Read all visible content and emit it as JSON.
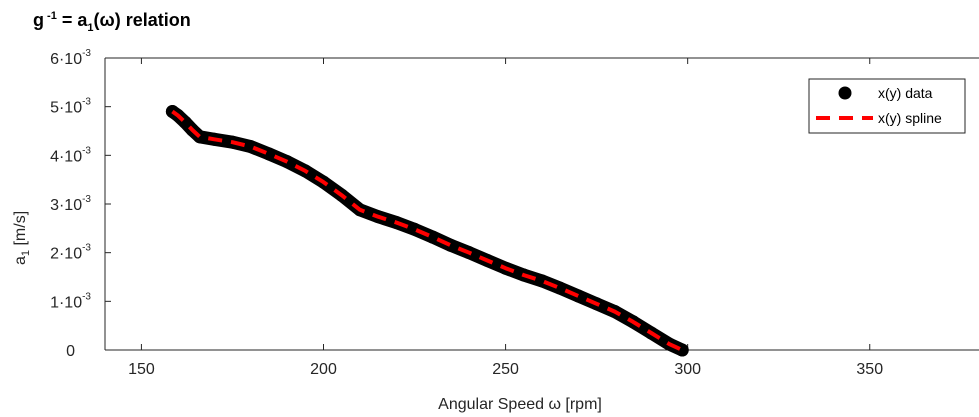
{
  "chart_data": {
    "type": "line",
    "title": "relation",
    "xlabel": "Angular Speed ω [rpm]",
    "ylabel": "[m/s]",
    "xlim": [
      140,
      380
    ],
    "ylim": [
      0,
      0.006
    ],
    "xticks": [
      150,
      200,
      250,
      300,
      350
    ],
    "xtick_labels": [
      "150",
      "200",
      "250",
      "300",
      "350"
    ],
    "yticks": [
      0,
      0.001,
      0.002,
      0.003,
      0.004,
      0.005,
      0.006
    ],
    "ytick_labels": [
      {
        "mant": "0",
        "exp": ""
      },
      {
        "mant": "1·10",
        "exp": "-3"
      },
      {
        "mant": "2·10",
        "exp": "-3"
      },
      {
        "mant": "3·10",
        "exp": "-3"
      },
      {
        "mant": "4·10",
        "exp": "-3"
      },
      {
        "mant": "5·10",
        "exp": "-3"
      },
      {
        "mant": "6·10",
        "exp": "-3"
      }
    ],
    "grid": false,
    "legend_position": "top-right",
    "series": [
      {
        "name": "x(y) data",
        "style": "marker",
        "color": "#000000",
        "x": [
          158.5,
          160,
          162,
          164,
          166,
          170,
          175,
          180,
          185,
          190,
          195,
          200,
          205,
          210,
          215,
          220,
          225,
          230,
          235,
          240,
          245,
          250,
          255,
          260,
          265,
          270,
          275,
          280,
          285,
          290,
          295,
          298.5
        ],
        "y": [
          0.0049,
          0.00482,
          0.00468,
          0.00452,
          0.00438,
          0.00433,
          0.00427,
          0.00418,
          0.00403,
          0.00387,
          0.00368,
          0.00345,
          0.00318,
          0.00288,
          0.00274,
          0.00262,
          0.00248,
          0.00232,
          0.00215,
          0.002,
          0.00184,
          0.00168,
          0.00154,
          0.00142,
          0.00127,
          0.00111,
          0.00095,
          0.00079,
          0.00058,
          0.00035,
          0.00012,
          0.0
        ]
      },
      {
        "name": "x(y) spline",
        "style": "dashed",
        "color": "#ff0000",
        "x": [
          158.5,
          160,
          162,
          164,
          166,
          170,
          175,
          180,
          185,
          190,
          195,
          200,
          205,
          210,
          215,
          220,
          225,
          230,
          235,
          240,
          245,
          250,
          255,
          260,
          265,
          270,
          275,
          280,
          285,
          290,
          295,
          298.5
        ],
        "y": [
          0.0049,
          0.00482,
          0.00468,
          0.00452,
          0.00438,
          0.00433,
          0.00427,
          0.00418,
          0.00403,
          0.00387,
          0.00368,
          0.00345,
          0.00318,
          0.00288,
          0.00274,
          0.00262,
          0.00248,
          0.00232,
          0.00215,
          0.002,
          0.00184,
          0.00168,
          0.00154,
          0.00142,
          0.00127,
          0.00111,
          0.00095,
          0.00079,
          0.00058,
          0.00035,
          0.00012,
          0.0
        ]
      }
    ]
  }
}
